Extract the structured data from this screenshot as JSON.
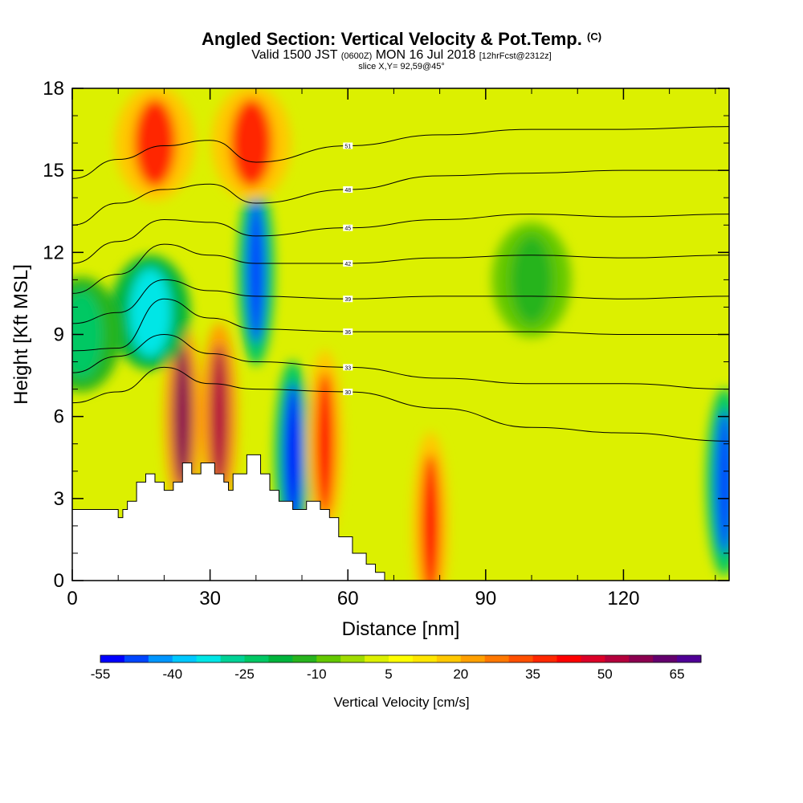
{
  "header": {
    "title": "Angled Section: Vertical Velocity & Pot.Temp.",
    "title_unit": "(C)",
    "valid_prefix": "Valid 1500 JST",
    "valid_zulu": "(0600Z)",
    "valid_date": "MON 16 Jul 2018",
    "forecast": "[12hrFcst@2312z]",
    "slice": "slice X,Y= 92,59@45°"
  },
  "chart_data": {
    "type": "heatmap",
    "xlabel": "Distance [nm]",
    "ylabel": "Height [Kft MSL]",
    "xlim": [
      0,
      143
    ],
    "ylim": [
      0,
      18
    ],
    "x_ticks": [
      "0",
      "30",
      "60",
      "90",
      "120"
    ],
    "y_ticks": [
      "0",
      "3",
      "6",
      "9",
      "12",
      "15",
      "18"
    ],
    "colorbar": {
      "label": "Vertical Velocity [cm/s]",
      "min": -55,
      "max": 75,
      "step": 5,
      "tick_labels": [
        "-55",
        "-40",
        "-25",
        "-10",
        "5",
        "20",
        "35",
        "50",
        "65"
      ],
      "colors": [
        "#0000ff",
        "#0046ff",
        "#0096ff",
        "#00c8ff",
        "#00e6e6",
        "#00d296",
        "#00c864",
        "#00b43c",
        "#28b41e",
        "#64c800",
        "#a0dc00",
        "#dcf000",
        "#ffff00",
        "#ffe600",
        "#ffc800",
        "#ffa000",
        "#ff7800",
        "#ff5000",
        "#ff2800",
        "#ff0000",
        "#dc0028",
        "#b4003c",
        "#8c0050",
        "#64006e",
        "#500096"
      ]
    },
    "terrain_kft": [
      [
        0,
        2.6
      ],
      [
        10,
        2.6
      ],
      [
        10,
        2.3
      ],
      [
        11,
        2.3
      ],
      [
        11,
        2.6
      ],
      [
        12,
        2.6
      ],
      [
        12,
        2.9
      ],
      [
        14,
        2.9
      ],
      [
        14,
        3.6
      ],
      [
        16,
        3.6
      ],
      [
        16,
        3.9
      ],
      [
        18,
        3.9
      ],
      [
        18,
        3.6
      ],
      [
        20,
        3.6
      ],
      [
        20,
        3.3
      ],
      [
        22,
        3.3
      ],
      [
        22,
        3.6
      ],
      [
        24,
        3.6
      ],
      [
        24,
        4.3
      ],
      [
        26,
        4.3
      ],
      [
        26,
        3.9
      ],
      [
        28,
        3.9
      ],
      [
        28,
        4.3
      ],
      [
        31,
        4.3
      ],
      [
        31,
        3.9
      ],
      [
        33,
        3.9
      ],
      [
        33,
        3.6
      ],
      [
        34,
        3.6
      ],
      [
        34,
        3.3
      ],
      [
        35,
        3.3
      ],
      [
        35,
        3.9
      ],
      [
        38,
        3.9
      ],
      [
        38,
        4.6
      ],
      [
        41,
        4.6
      ],
      [
        41,
        3.9
      ],
      [
        43,
        3.9
      ],
      [
        43,
        3.3
      ],
      [
        45,
        3.3
      ],
      [
        45,
        2.9
      ],
      [
        48,
        2.9
      ],
      [
        48,
        2.6
      ],
      [
        51,
        2.6
      ],
      [
        51,
        2.9
      ],
      [
        54,
        2.9
      ],
      [
        54,
        2.6
      ],
      [
        56,
        2.6
      ],
      [
        56,
        2.3
      ],
      [
        58,
        2.3
      ],
      [
        58,
        1.6
      ],
      [
        60,
        1.6
      ],
      [
        61,
        1.6
      ],
      [
        61,
        1.0
      ],
      [
        64,
        1.0
      ],
      [
        64,
        0.6
      ],
      [
        66,
        0.6
      ],
      [
        66,
        0.3
      ],
      [
        68,
        0.3
      ],
      [
        68,
        0.0
      ],
      [
        143,
        0.0
      ]
    ],
    "velocity_features": [
      {
        "x": 40,
        "y": 11.3,
        "value": -50
      },
      {
        "x": 48,
        "y": 4.6,
        "value": -55
      },
      {
        "x": 142,
        "y": 3.6,
        "value": -50
      },
      {
        "x": 24,
        "y": 6.0,
        "value": 55
      },
      {
        "x": 32,
        "y": 6.0,
        "value": 50
      },
      {
        "x": 18,
        "y": 16.0,
        "value": 35
      },
      {
        "x": 39,
        "y": 16.0,
        "value": 35
      },
      {
        "x": 55,
        "y": 5.0,
        "value": 40
      },
      {
        "x": 78,
        "y": 2.0,
        "value": 40
      },
      {
        "x": 17,
        "y": 9.8,
        "value": -35
      },
      {
        "x": 2,
        "y": 9.0,
        "value": -25
      },
      {
        "x": 100,
        "y": 11.0,
        "value": -15
      }
    ],
    "isentropes": [
      {
        "label": "30",
        "points": [
          [
            0,
            6.5
          ],
          [
            10,
            6.9
          ],
          [
            20,
            7.8
          ],
          [
            30,
            7.2
          ],
          [
            40,
            7.0
          ],
          [
            60,
            6.9
          ],
          [
            80,
            6.3
          ],
          [
            100,
            5.6
          ],
          [
            120,
            5.4
          ],
          [
            143,
            5.1
          ]
        ]
      },
      {
        "label": "33",
        "points": [
          [
            0,
            7.6
          ],
          [
            10,
            8.2
          ],
          [
            20,
            9.0
          ],
          [
            30,
            8.3
          ],
          [
            40,
            8.0
          ],
          [
            60,
            7.8
          ],
          [
            80,
            7.4
          ],
          [
            100,
            7.2
          ],
          [
            120,
            7.2
          ],
          [
            143,
            7.0
          ]
        ]
      },
      {
        "label": "36",
        "points": [
          [
            0,
            8.4
          ],
          [
            10,
            8.5
          ],
          [
            20,
            10.3
          ],
          [
            30,
            9.6
          ],
          [
            40,
            9.2
          ],
          [
            60,
            9.1
          ],
          [
            80,
            9.1
          ],
          [
            100,
            9.1
          ],
          [
            120,
            9.0
          ],
          [
            143,
            9.0
          ]
        ]
      },
      {
        "label": "39",
        "points": [
          [
            0,
            9.4
          ],
          [
            10,
            9.8
          ],
          [
            20,
            11.0
          ],
          [
            30,
            10.6
          ],
          [
            40,
            10.4
          ],
          [
            60,
            10.3
          ],
          [
            80,
            10.4
          ],
          [
            100,
            10.4
          ],
          [
            120,
            10.3
          ],
          [
            143,
            10.4
          ]
        ]
      },
      {
        "label": "42",
        "points": [
          [
            0,
            10.5
          ],
          [
            10,
            11.2
          ],
          [
            20,
            12.3
          ],
          [
            30,
            11.9
          ],
          [
            40,
            11.6
          ],
          [
            60,
            11.6
          ],
          [
            80,
            11.8
          ],
          [
            100,
            11.9
          ],
          [
            120,
            11.8
          ],
          [
            143,
            11.9
          ]
        ]
      },
      {
        "label": "45",
        "points": [
          [
            0,
            11.6
          ],
          [
            10,
            12.4
          ],
          [
            20,
            13.2
          ],
          [
            30,
            13.1
          ],
          [
            40,
            12.6
          ],
          [
            60,
            12.9
          ],
          [
            80,
            13.2
          ],
          [
            100,
            13.4
          ],
          [
            120,
            13.3
          ],
          [
            143,
            13.4
          ]
        ]
      },
      {
        "label": "48",
        "points": [
          [
            0,
            13.0
          ],
          [
            10,
            13.8
          ],
          [
            20,
            14.3
          ],
          [
            30,
            14.5
          ],
          [
            40,
            13.8
          ],
          [
            60,
            14.3
          ],
          [
            80,
            14.8
          ],
          [
            100,
            14.9
          ],
          [
            120,
            15.0
          ],
          [
            143,
            15.0
          ]
        ]
      },
      {
        "label": "51",
        "points": [
          [
            0,
            14.7
          ],
          [
            10,
            15.4
          ],
          [
            20,
            15.9
          ],
          [
            30,
            16.1
          ],
          [
            40,
            15.3
          ],
          [
            60,
            15.9
          ],
          [
            80,
            16.3
          ],
          [
            100,
            16.5
          ],
          [
            120,
            16.5
          ],
          [
            143,
            16.6
          ]
        ]
      }
    ]
  }
}
